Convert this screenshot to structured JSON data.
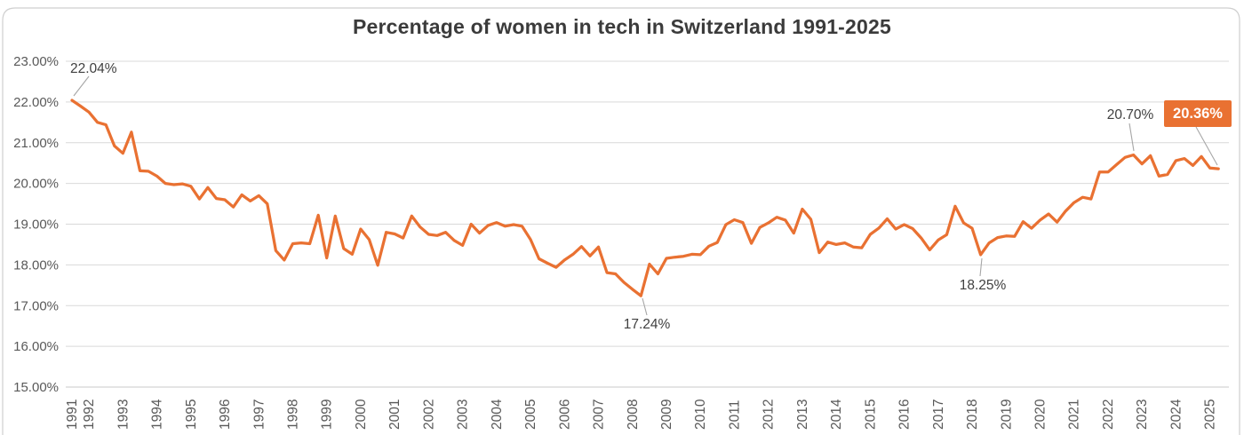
{
  "page": {
    "title": "Percentage of women in tech in Switzerland 1991-2025"
  },
  "colors": {
    "line": "#E97132",
    "badge_fill": "#E97132",
    "badge_text": "#FFFFFF",
    "gridline": "#D9D9D9",
    "axis_line": "#C9C9C9",
    "axis_text": "#595959",
    "annotation_text": "#404040",
    "leader_line": "#A6A6A6",
    "title_text": "#3B3B3B",
    "card_border": "#CFCFCF",
    "background": "#FFFFFF"
  },
  "chart_data": {
    "type": "line",
    "title": "Percentage of women in tech in Switzerland 1991-2025",
    "xlabel": "",
    "ylabel": "",
    "ylim": [
      15,
      23
    ],
    "grid": true,
    "legend_position": "none",
    "y_tick_labels": [
      "23.00%",
      "22.00%",
      "21.00%",
      "20.00%",
      "19.00%",
      "18.00%",
      "17.00%",
      "16.00%",
      "15.00%"
    ],
    "x_tick_labels": [
      "1991",
      "1992",
      "1993",
      "1994",
      "1995",
      "1996",
      "1997",
      "1998",
      "1999",
      "2000",
      "2001",
      "2002",
      "2003",
      "2004",
      "2005",
      "2006",
      "2007",
      "2008",
      "2009",
      "2010",
      "2011",
      "2012",
      "2013",
      "2014",
      "2015",
      "2016",
      "2017",
      "2018",
      "2019",
      "2020",
      "2021",
      "2022",
      "2023",
      "2024",
      "2025"
    ],
    "series": [
      {
        "name": "Percentage of women in tech",
        "color": "#E97132",
        "start": "1991 Q3",
        "frequency": "quarterly",
        "values": [
          22.04,
          21.9,
          21.75,
          21.5,
          21.44,
          20.92,
          20.74,
          21.26,
          20.31,
          20.3,
          20.18,
          20.0,
          19.97,
          19.99,
          19.93,
          19.62,
          19.9,
          19.63,
          19.6,
          19.42,
          19.72,
          19.57,
          19.7,
          19.5,
          18.35,
          18.12,
          18.52,
          18.54,
          18.52,
          19.22,
          18.17,
          19.2,
          18.4,
          18.26,
          18.88,
          18.62,
          17.99,
          18.8,
          18.76,
          18.66,
          19.2,
          18.93,
          18.75,
          18.72,
          18.8,
          18.6,
          18.48,
          19.0,
          18.78,
          18.97,
          19.04,
          18.95,
          18.99,
          18.95,
          18.62,
          18.15,
          18.04,
          17.94,
          18.12,
          18.26,
          18.45,
          18.22,
          18.44,
          17.81,
          17.78,
          17.57,
          17.4,
          17.24,
          18.02,
          17.78,
          18.16,
          18.19,
          18.21,
          18.26,
          18.25,
          18.46,
          18.55,
          18.99,
          19.11,
          19.04,
          18.53,
          18.92,
          19.03,
          19.17,
          19.1,
          18.78,
          19.37,
          19.12,
          18.3,
          18.56,
          18.5,
          18.54,
          18.44,
          18.42,
          18.75,
          18.9,
          19.13,
          18.88,
          18.99,
          18.89,
          18.66,
          18.37,
          18.61,
          18.74,
          19.44,
          19.03,
          18.9,
          18.25,
          18.54,
          18.67,
          18.71,
          18.7,
          19.06,
          18.9,
          19.1,
          19.25,
          19.05,
          19.32,
          19.53,
          19.66,
          19.62,
          20.28,
          20.28,
          20.46,
          20.64,
          20.7,
          20.48,
          20.68,
          20.18,
          20.22,
          20.56,
          20.61,
          20.44,
          20.66,
          20.38,
          20.36
        ]
      }
    ],
    "annotations": [
      {
        "label": "22.04%",
        "point_index": 0,
        "kind": "text"
      },
      {
        "label": "17.24%",
        "point_index": 67,
        "kind": "text"
      },
      {
        "label": "18.25%",
        "point_index": 107,
        "kind": "text"
      },
      {
        "label": "20.70%",
        "point_index": 125,
        "kind": "text"
      },
      {
        "label": "20.36%",
        "point_index": 135,
        "kind": "badge"
      }
    ]
  }
}
